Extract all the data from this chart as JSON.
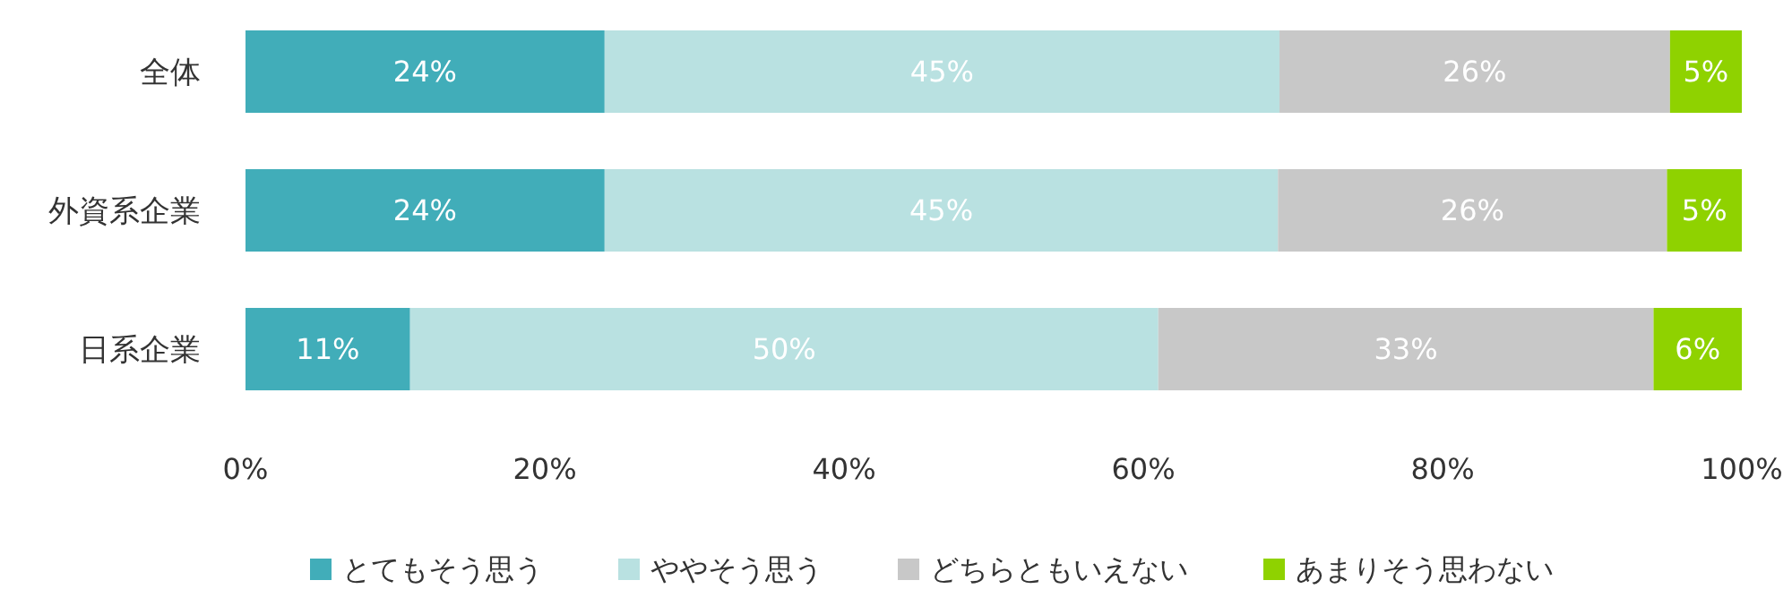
{
  "chart_data": {
    "type": "bar",
    "orientation": "horizontal",
    "stacked": true,
    "categories": [
      "全体",
      "外資系企業",
      "日系企業"
    ],
    "series": [
      {
        "name": "とてもそう思う",
        "color": "#41adb9",
        "values": [
          24,
          24,
          11
        ],
        "value_labels": [
          "24%",
          "24%",
          "11%"
        ]
      },
      {
        "name": "ややそう思う",
        "color": "#b9e1e1",
        "values": [
          45.1,
          45,
          50
        ],
        "value_labels": [
          "45%",
          "45%",
          "50%"
        ]
      },
      {
        "name": "どちらともいえない",
        "color": "#c8c8c8",
        "values": [
          26.1,
          26,
          33.1
        ],
        "value_labels": [
          "26%",
          "26%",
          "33%"
        ]
      },
      {
        "name": "あまりそう思わない",
        "color": "#8fd200",
        "values": [
          4.8,
          5,
          5.9
        ],
        "value_labels": [
          "5%",
          "5%",
          "6%"
        ]
      }
    ],
    "xlim": [
      0,
      100
    ],
    "xticks": [
      {
        "value": 0,
        "label": "0%"
      },
      {
        "value": 20,
        "label": "20%"
      },
      {
        "value": 40,
        "label": "40%"
      },
      {
        "value": 60,
        "label": "60%"
      },
      {
        "value": 80,
        "label": "80%"
      },
      {
        "value": 100,
        "label": "100%"
      }
    ],
    "legend": "bottom",
    "grid": false
  }
}
